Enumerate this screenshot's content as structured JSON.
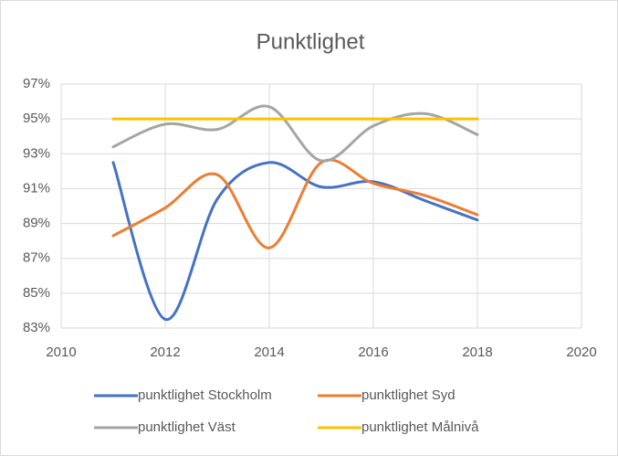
{
  "chart_data": {
    "type": "line",
    "title": "Punktlighet",
    "x": [
      2011,
      2012,
      2013,
      2014,
      2015,
      2016,
      2017,
      2018
    ],
    "xlim": [
      2010,
      2020
    ],
    "xticks": [
      2010,
      2012,
      2014,
      2016,
      2018,
      2020
    ],
    "ylim": [
      83,
      97
    ],
    "yticks": [
      {
        "value": 83,
        "label": "83%"
      },
      {
        "value": 85,
        "label": "85%"
      },
      {
        "value": 87,
        "label": "87%"
      },
      {
        "value": 89,
        "label": "89%"
      },
      {
        "value": 91,
        "label": "91%"
      },
      {
        "value": 93,
        "label": "93%"
      },
      {
        "value": 95,
        "label": "95%"
      },
      {
        "value": 97,
        "label": "97%"
      }
    ],
    "grid": true,
    "smooth": true,
    "legend": "bottom",
    "series": [
      {
        "name": "punktlighet Stockholm",
        "color": "#4472c4",
        "values": [
          92.5,
          83.5,
          90.4,
          92.5,
          91.1,
          91.4,
          90.3,
          89.2
        ]
      },
      {
        "name": "punktlighet Syd",
        "color": "#ed7d31",
        "values": [
          88.3,
          89.9,
          91.8,
          87.6,
          92.5,
          91.3,
          90.6,
          89.5
        ]
      },
      {
        "name": "punktlighet Väst",
        "color": "#a5a5a5",
        "values": [
          93.4,
          94.7,
          94.4,
          95.7,
          92.6,
          94.6,
          95.3,
          94.1
        ]
      },
      {
        "name": "punktlighet Målnivå",
        "color": "#ffc000",
        "values": [
          95,
          95,
          95,
          95,
          95,
          95,
          95,
          95
        ]
      }
    ]
  }
}
